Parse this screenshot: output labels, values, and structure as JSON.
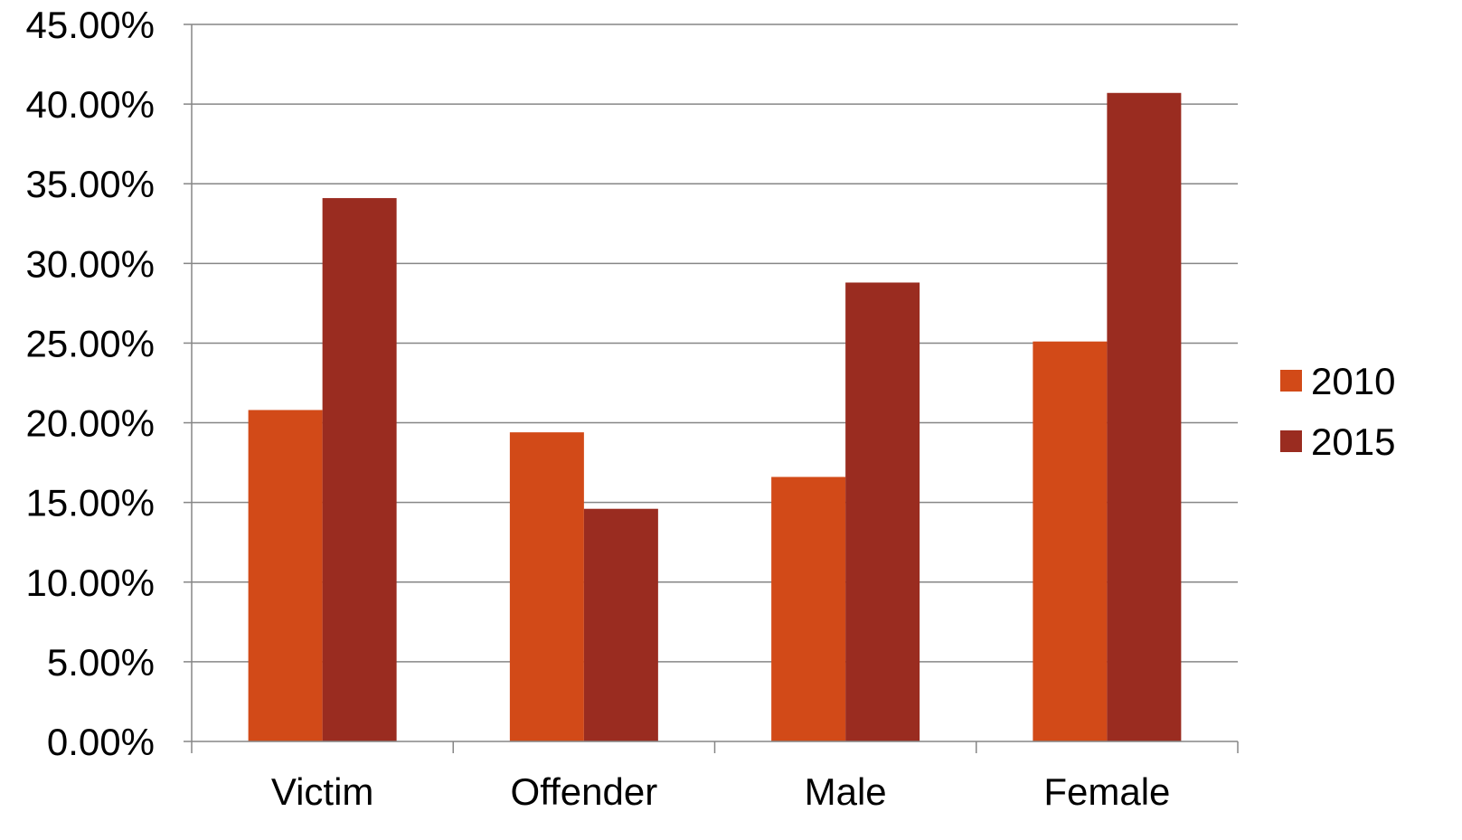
{
  "chart_data": {
    "type": "bar",
    "title": "",
    "xlabel": "",
    "ylabel": "",
    "categories": [
      "Victim",
      "Offender",
      "Male",
      "Female"
    ],
    "series": [
      {
        "name": "2010",
        "color": "#D24A18",
        "values": [
          20.8,
          19.4,
          16.6,
          25.1
        ]
      },
      {
        "name": "2015",
        "color": "#9A2C20",
        "values": [
          34.1,
          14.6,
          28.8,
          40.7
        ]
      }
    ],
    "ylim": [
      0,
      45
    ],
    "y_ticks": [
      0,
      5,
      10,
      15,
      20,
      25,
      30,
      35,
      40,
      45
    ],
    "y_tick_labels": [
      "0.00%",
      "5.00%",
      "10.00%",
      "15.00%",
      "20.00%",
      "25.00%",
      "30.00%",
      "35.00%",
      "40.00%",
      "45.00%"
    ],
    "grid": true,
    "legend_position": "right"
  }
}
